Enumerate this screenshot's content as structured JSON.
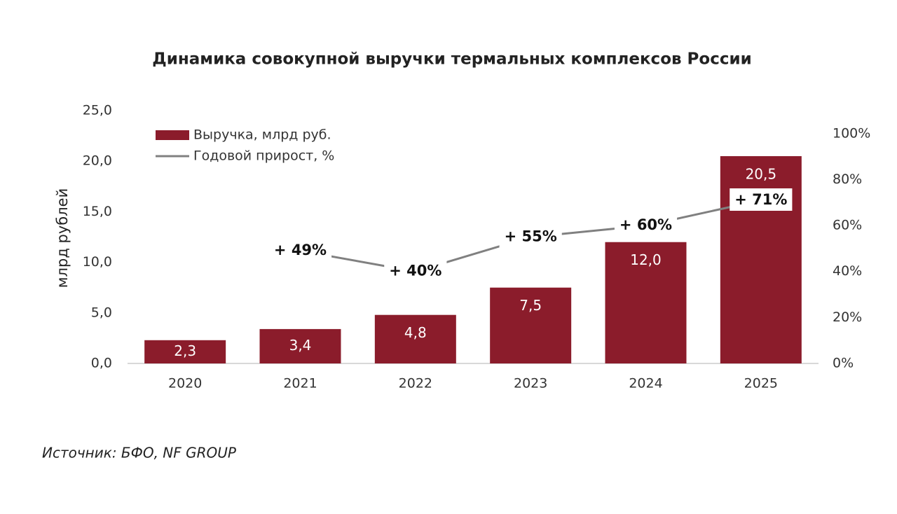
{
  "chart_data": {
    "type": "bar",
    "title": "Динамика совокупной выручки термальных комплексов России",
    "y_label": "млрд рублей",
    "source": "Источник: БФО, NF GROUP",
    "categories": [
      "2020",
      "2021",
      "2022",
      "2023",
      "2024",
      "2025"
    ],
    "series": [
      {
        "name": "Выручка, млрд руб.",
        "type": "bar",
        "color": "#8b1c2b",
        "values": [
          2.3,
          3.4,
          4.8,
          7.5,
          12.0,
          20.5
        ],
        "value_labels": [
          "2,3",
          "3,4",
          "4,8",
          "7,5",
          "12,0",
          "20,5"
        ]
      },
      {
        "name": "Годовой прирост, %",
        "type": "line",
        "axis": "y2",
        "color": "#808080",
        "values": [
          null,
          49,
          40,
          55,
          60,
          71
        ],
        "value_labels": [
          null,
          "+ 49%",
          "+ 40%",
          "+ 55%",
          "+ 60%",
          "+ 71%"
        ]
      }
    ],
    "ylim": [
      0,
      25
    ],
    "yticks": [
      {
        "value": 0,
        "label": "0,0"
      },
      {
        "value": 5,
        "label": "5,0"
      },
      {
        "value": 10,
        "label": "10,0"
      },
      {
        "value": 15,
        "label": "15,0"
      },
      {
        "value": 20,
        "label": "20,0"
      },
      {
        "value": 25,
        "label": "25,0"
      }
    ],
    "y2lim": [
      0,
      110
    ],
    "y2ticks": [
      {
        "value": 0,
        "label": "0%"
      },
      {
        "value": 20,
        "label": "20%"
      },
      {
        "value": 40,
        "label": "40%"
      },
      {
        "value": 60,
        "label": "60%"
      },
      {
        "value": 80,
        "label": "80%"
      },
      {
        "value": 100,
        "label": "100%"
      }
    ],
    "grid": false,
    "legend": "top-left"
  }
}
